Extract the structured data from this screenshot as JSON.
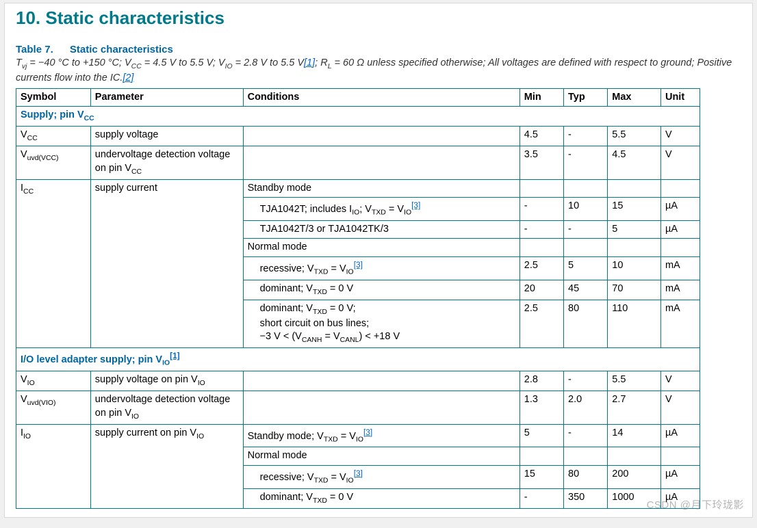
{
  "section_title": "10. Static characteristics",
  "table_label_num": "Table 7.",
  "table_label_title": "Static characteristics",
  "caption_parts": {
    "p1": "T",
    "p1_sub": "vj",
    "p2": " = −40 °C to +150 °C; V",
    "p2_sub": "CC",
    "p3": " = 4.5 V to 5.5 V; V",
    "p3_sub": "IO",
    "p4": " = 2.8 V to 5.5 V",
    "ref1": "[1]",
    "p5": "; R",
    "p5_sub": "L",
    "p6": " = 60 Ω unless specified otherwise; All voltages are defined with respect to ground; Positive currents flow into the IC.",
    "ref2": "[2]"
  },
  "headers": {
    "symbol": "Symbol",
    "parameter": "Parameter",
    "conditions": "Conditions",
    "min": "Min",
    "typ": "Typ",
    "max": "Max",
    "unit": "Unit"
  },
  "sec1": "Supply; pin V",
  "sec1_sub": "CC",
  "r1": {
    "sym": "V",
    "sym_sub": "CC",
    "param": "supply voltage",
    "cond": "",
    "min": "4.5",
    "typ": "-",
    "max": "5.5",
    "unit": "V"
  },
  "r2": {
    "sym": "V",
    "sym_sub": "uvd(VCC)",
    "param_a": "undervoltage detection voltage on pin V",
    "param_b": "CC",
    "cond": "",
    "min": "3.5",
    "typ": "-",
    "max": "4.5",
    "unit": "V"
  },
  "r3": {
    "sym": "I",
    "sym_sub": "CC",
    "param": "supply current",
    "cond": "Standby mode"
  },
  "r4": {
    "cond_a": "TJA1042T; includes I",
    "cond_b": "IO",
    "cond_c": "; V",
    "cond_d": "TXD",
    "cond_e": " = V",
    "cond_f": "IO",
    "ref": "[3]",
    "min": "-",
    "typ": "10",
    "max": "15",
    "unit": "µA"
  },
  "r5": {
    "cond": "TJA1042T/3 or TJA1042TK/3",
    "min": "-",
    "typ": "-",
    "max": "5",
    "unit": "µA"
  },
  "r6": {
    "cond": "Normal mode"
  },
  "r7": {
    "cond_a": "recessive; V",
    "cond_b": "TXD",
    "cond_c": " = V",
    "cond_d": "IO",
    "ref": "[3]",
    "min": "2.5",
    "typ": "5",
    "max": "10",
    "unit": "mA"
  },
  "r8": {
    "cond_a": "dominant; V",
    "cond_b": "TXD",
    "cond_c": " = 0 V",
    "min": "20",
    "typ": "45",
    "max": "70",
    "unit": "mA"
  },
  "r9": {
    "l1a": "dominant; V",
    "l1b": "TXD",
    "l1c": " = 0 V;",
    "l2": "short circuit on bus lines;",
    "l3a": "−3 V < (V",
    "l3b": "CANH",
    "l3c": " = V",
    "l3d": "CANL",
    "l3e": ") < +18 V",
    "min": "2.5",
    "typ": "80",
    "max": "110",
    "unit": "mA"
  },
  "sec2_a": "I/O level adapter supply; pin V",
  "sec2_b": "IO",
  "sec2_ref": "[1]",
  "r10": {
    "sym": "V",
    "sym_sub": "IO",
    "param_a": "supply voltage on pin V",
    "param_b": "IO",
    "cond": "",
    "min": "2.8",
    "typ": "-",
    "max": "5.5",
    "unit": "V"
  },
  "r11": {
    "sym": "V",
    "sym_sub": "uvd(VIO)",
    "param_a": "undervoltage detection voltage on pin V",
    "param_b": "IO",
    "cond": "",
    "min": "1.3",
    "typ": "2.0",
    "max": "2.7",
    "unit": "V"
  },
  "r12": {
    "sym": "I",
    "sym_sub": "IO",
    "param_a": "supply current on pin V",
    "param_b": "IO",
    "cond_a": "Standby mode; V",
    "cond_b": "TXD",
    "cond_c": " = V",
    "cond_d": "IO",
    "ref": "[3]",
    "min": "5",
    "typ": "-",
    "max": "14",
    "unit": "µA"
  },
  "r13": {
    "cond": "Normal mode"
  },
  "r14": {
    "cond_a": "recessive; V",
    "cond_b": "TXD",
    "cond_c": " = V",
    "cond_d": "IO",
    "ref": "[3]",
    "min": "15",
    "typ": "80",
    "max": "200",
    "unit": "µA"
  },
  "r15": {
    "cond_a": "dominant; V",
    "cond_b": "TXD",
    "cond_c": " = 0 V",
    "min": "-",
    "typ": "350",
    "max": "1000",
    "unit": "µA"
  },
  "watermark": "CSDN @月下玲珑影"
}
